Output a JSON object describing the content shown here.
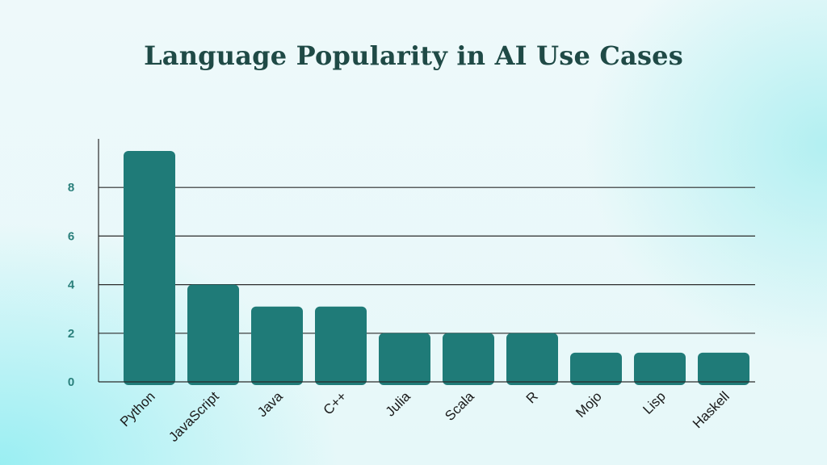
{
  "chart_data": {
    "type": "bar",
    "title": "Language Popularity in AI Use Cases",
    "xlabel": "",
    "ylabel": "",
    "categories": [
      "Python",
      "JavaScript",
      "Java",
      "C++",
      "Julia",
      "Scala",
      "R",
      "Mojo",
      "Lisp",
      "Haskell"
    ],
    "values": [
      9.5,
      4,
      3.1,
      3.1,
      2,
      2,
      2,
      1.2,
      1.2,
      1.2
    ],
    "y_ticks": [
      0,
      2,
      4,
      6,
      8
    ],
    "ylim": [
      0,
      10
    ],
    "grid": true,
    "colors": {
      "bar": "#1f7b78",
      "grid": "#2b2b2b",
      "tick": "#2a7f7b",
      "title": "#1f4a46"
    }
  }
}
